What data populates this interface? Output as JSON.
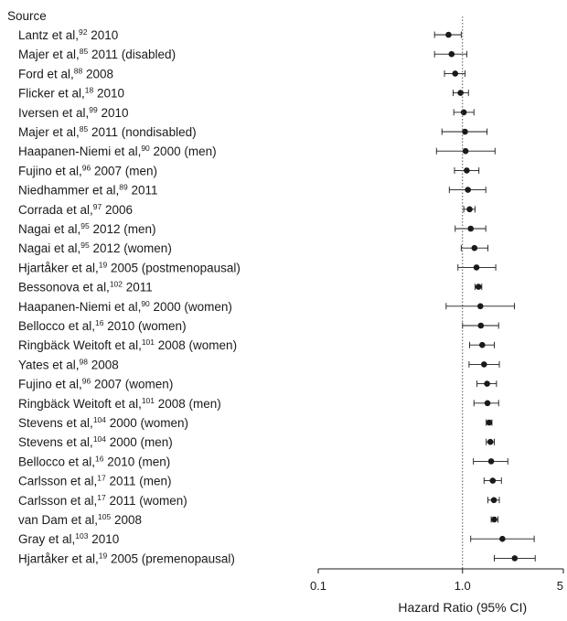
{
  "chart_data": {
    "type": "forest",
    "title": "",
    "column_header": "Source",
    "xlabel": "Hazard Ratio (95% CI)",
    "x_scale": "log",
    "xlim": [
      0.1,
      5
    ],
    "xticks": [
      {
        "value": 0.1,
        "label": "0.1"
      },
      {
        "value": 1.0,
        "label": "1.0"
      },
      {
        "value": 5,
        "label": "5"
      }
    ],
    "reference_line": 1.0,
    "rows": [
      {
        "pre": "Lantz et al,",
        "ref": "92",
        "post": " 2010",
        "hr": 0.8,
        "lo": 0.64,
        "hi": 0.98
      },
      {
        "pre": "Majer et al,",
        "ref": "85",
        "post": " 2011 (disabled)",
        "hr": 0.84,
        "lo": 0.64,
        "hi": 1.07
      },
      {
        "pre": "Ford et al,",
        "ref": "88",
        "post": " 2008",
        "hr": 0.89,
        "lo": 0.75,
        "hi": 1.04
      },
      {
        "pre": "Flicker et al,",
        "ref": "18",
        "post": " 2010",
        "hr": 0.97,
        "lo": 0.86,
        "hi": 1.1
      },
      {
        "pre": "Iversen et al,",
        "ref": "99",
        "post": " 2010",
        "hr": 1.02,
        "lo": 0.87,
        "hi": 1.2
      },
      {
        "pre": "Majer et al,",
        "ref": "85",
        "post": " 2011 (nondisabled)",
        "hr": 1.04,
        "lo": 0.72,
        "hi": 1.48
      },
      {
        "pre": "Haapanen-Niemi et al,",
        "ref": "90",
        "post": " 2000 (men)",
        "hr": 1.05,
        "lo": 0.66,
        "hi": 1.68
      },
      {
        "pre": "Fujino et al,",
        "ref": "96",
        "post": " 2007 (men)",
        "hr": 1.07,
        "lo": 0.88,
        "hi": 1.3
      },
      {
        "pre": "Niedhammer et al,",
        "ref": "89",
        "post": " 2011",
        "hr": 1.09,
        "lo": 0.81,
        "hi": 1.45
      },
      {
        "pre": "Corrada et al,",
        "ref": "97",
        "post": " 2006",
        "hr": 1.12,
        "lo": 1.02,
        "hi": 1.22
      },
      {
        "pre": "Nagai et al,",
        "ref": "95",
        "post": " 2012 (men)",
        "hr": 1.14,
        "lo": 0.89,
        "hi": 1.45
      },
      {
        "pre": "Nagai et al,",
        "ref": "95",
        "post": " 2012 (women)",
        "hr": 1.21,
        "lo": 0.98,
        "hi": 1.5
      },
      {
        "pre": "Hjartåker et al,",
        "ref": "19",
        "post": " 2005 (postmenopausal)",
        "hr": 1.25,
        "lo": 0.93,
        "hi": 1.7
      },
      {
        "pre": "Bessonova et al,",
        "ref": "102",
        "post": " 2011",
        "hr": 1.29,
        "lo": 1.22,
        "hi": 1.36
      },
      {
        "pre": "Haapanen-Niemi et al,",
        "ref": "90",
        "post": " 2000 (women)",
        "hr": 1.33,
        "lo": 0.77,
        "hi": 2.29
      },
      {
        "pre": "Bellocco et al,",
        "ref": "16",
        "post": " 2010 (women)",
        "hr": 1.34,
        "lo": 1.0,
        "hi": 1.78
      },
      {
        "pre": "Ringbäck Weitoft et al,",
        "ref": "101",
        "post": " 2008 (women)",
        "hr": 1.37,
        "lo": 1.12,
        "hi": 1.66
      },
      {
        "pre": "Yates et al,",
        "ref": "98",
        "post": " 2008",
        "hr": 1.41,
        "lo": 1.11,
        "hi": 1.8
      },
      {
        "pre": "Fujino et al,",
        "ref": "96",
        "post": " 2007 (women)",
        "hr": 1.48,
        "lo": 1.26,
        "hi": 1.72
      },
      {
        "pre": "Ringbäck Weitoft et al,",
        "ref": "101",
        "post": " 2008 (men)",
        "hr": 1.49,
        "lo": 1.2,
        "hi": 1.78
      },
      {
        "pre": "Stevens et al,",
        "ref": "104",
        "post": " 2000 (women)",
        "hr": 1.53,
        "lo": 1.46,
        "hi": 1.6
      },
      {
        "pre": "Stevens et al,",
        "ref": "104",
        "post": " 2000 (men)",
        "hr": 1.56,
        "lo": 1.46,
        "hi": 1.66
      },
      {
        "pre": "Bellocco et al,",
        "ref": "16",
        "post": " 2010 (men)",
        "hr": 1.58,
        "lo": 1.19,
        "hi": 2.06
      },
      {
        "pre": "Carlsson et al,",
        "ref": "17",
        "post": " 2011 (men)",
        "hr": 1.62,
        "lo": 1.41,
        "hi": 1.86
      },
      {
        "pre": "Carlsson et al,",
        "ref": "17",
        "post": " 2011 (women)",
        "hr": 1.65,
        "lo": 1.5,
        "hi": 1.8
      },
      {
        "pre": "van Dam et al,",
        "ref": "105",
        "post": " 2008",
        "hr": 1.66,
        "lo": 1.58,
        "hi": 1.76
      },
      {
        "pre": "Gray et al,",
        "ref": "103",
        "post": " 2010",
        "hr": 1.89,
        "lo": 1.14,
        "hi": 3.14
      },
      {
        "pre": "Hjartåker et al,",
        "ref": "19",
        "post": " 2005 (premenopausal)",
        "hr": 2.3,
        "lo": 1.66,
        "hi": 3.19
      }
    ]
  }
}
